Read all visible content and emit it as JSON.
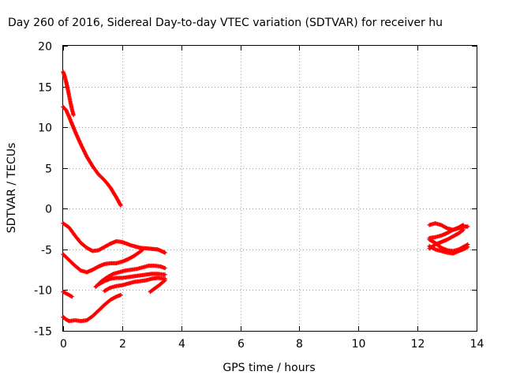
{
  "chart_data": {
    "type": "scatter",
    "title": "Day 260 of 2016, Sidereal Day-to-day VTEC variation (SDTVAR) for receiver hu",
    "xlabel": "GPS time / hours",
    "ylabel": "SDTVAR / TECUs",
    "xlim": [
      0,
      14
    ],
    "ylim": [
      -15,
      20
    ],
    "xticks": [
      0,
      2,
      4,
      6,
      8,
      10,
      12,
      14
    ],
    "yticks": [
      -15,
      -10,
      -5,
      0,
      5,
      10,
      15,
      20
    ],
    "grid": true,
    "marker": "+",
    "color": "#ff0000",
    "series": [
      {
        "segments": [
          [
            [
              0.0,
              16.8
            ],
            [
              0.05,
              16.3
            ],
            [
              0.1,
              15.6
            ],
            [
              0.15,
              14.8
            ],
            [
              0.2,
              13.9
            ],
            [
              0.25,
              13.0
            ],
            [
              0.3,
              12.2
            ],
            [
              0.35,
              11.5
            ]
          ]
        ]
      },
      {
        "segments": [
          [
            [
              0.0,
              12.5
            ],
            [
              0.1,
              12.1
            ],
            [
              0.2,
              11.3
            ],
            [
              0.3,
              10.4
            ],
            [
              0.45,
              9.1
            ],
            [
              0.6,
              7.9
            ],
            [
              0.8,
              6.4
            ],
            [
              1.0,
              5.2
            ],
            [
              1.2,
              4.2
            ],
            [
              1.4,
              3.5
            ],
            [
              1.6,
              2.6
            ],
            [
              1.8,
              1.4
            ],
            [
              1.95,
              0.4
            ]
          ]
        ]
      },
      {
        "segments": [
          [
            [
              0.0,
              -1.8
            ],
            [
              0.2,
              -2.3
            ],
            [
              0.4,
              -3.3
            ],
            [
              0.6,
              -4.2
            ],
            [
              0.8,
              -4.8
            ],
            [
              1.0,
              -5.2
            ],
            [
              1.2,
              -5.1
            ],
            [
              1.4,
              -4.7
            ],
            [
              1.6,
              -4.3
            ],
            [
              1.8,
              -4.0
            ],
            [
              2.0,
              -4.1
            ],
            [
              2.3,
              -4.5
            ],
            [
              2.6,
              -4.8
            ],
            [
              2.9,
              -4.9
            ],
            [
              3.2,
              -5.0
            ],
            [
              3.45,
              -5.4
            ]
          ]
        ]
      },
      {
        "segments": [
          [
            [
              0.0,
              -5.6
            ],
            [
              0.2,
              -6.3
            ],
            [
              0.4,
              -7.0
            ],
            [
              0.6,
              -7.6
            ],
            [
              0.8,
              -7.8
            ],
            [
              1.0,
              -7.5
            ],
            [
              1.2,
              -7.1
            ],
            [
              1.4,
              -6.8
            ],
            [
              1.6,
              -6.7
            ],
            [
              1.8,
              -6.7
            ],
            [
              2.0,
              -6.5
            ],
            [
              2.2,
              -6.2
            ],
            [
              2.4,
              -5.8
            ],
            [
              2.6,
              -5.3
            ],
            [
              2.7,
              -5.0
            ]
          ]
        ]
      },
      {
        "segments": [
          [
            [
              1.1,
              -9.6
            ],
            [
              1.3,
              -8.9
            ],
            [
              1.5,
              -8.4
            ],
            [
              1.7,
              -8.0
            ],
            [
              1.9,
              -7.8
            ],
            [
              2.1,
              -7.6
            ],
            [
              2.3,
              -7.5
            ],
            [
              2.5,
              -7.4
            ],
            [
              2.7,
              -7.2
            ],
            [
              2.9,
              -7.0
            ],
            [
              3.1,
              -7.0
            ],
            [
              3.3,
              -7.1
            ],
            [
              3.45,
              -7.3
            ]
          ]
        ]
      },
      {
        "segments": [
          [
            [
              1.2,
              -9.3
            ],
            [
              1.4,
              -8.9
            ],
            [
              1.6,
              -8.6
            ],
            [
              1.8,
              -8.5
            ],
            [
              2.0,
              -8.5
            ],
            [
              2.2,
              -8.4
            ],
            [
              2.4,
              -8.3
            ],
            [
              2.6,
              -8.2
            ],
            [
              2.8,
              -8.1
            ],
            [
              3.0,
              -8.0
            ],
            [
              3.2,
              -8.0
            ],
            [
              3.45,
              -8.1
            ]
          ],
          [
            [
              1.4,
              -10.1
            ],
            [
              1.6,
              -9.7
            ],
            [
              1.8,
              -9.5
            ],
            [
              2.0,
              -9.4
            ],
            [
              2.2,
              -9.2
            ],
            [
              2.4,
              -9.0
            ],
            [
              2.6,
              -8.9
            ],
            [
              2.8,
              -8.8
            ],
            [
              3.0,
              -8.6
            ],
            [
              3.2,
              -8.5
            ],
            [
              3.45,
              -8.6
            ]
          ]
        ]
      },
      {
        "segments": [
          [
            [
              2.95,
              -10.2
            ],
            [
              3.1,
              -9.8
            ],
            [
              3.25,
              -9.4
            ],
            [
              3.45,
              -8.8
            ]
          ]
        ]
      },
      {
        "segments": [
          [
            [
              0.0,
              -10.2
            ],
            [
              0.1,
              -10.4
            ],
            [
              0.2,
              -10.6
            ],
            [
              0.3,
              -10.8
            ]
          ]
        ]
      },
      {
        "segments": [
          [
            [
              0.0,
              -13.3
            ],
            [
              0.1,
              -13.6
            ],
            [
              0.2,
              -13.8
            ],
            [
              0.4,
              -13.7
            ],
            [
              0.6,
              -13.8
            ],
            [
              0.8,
              -13.7
            ],
            [
              1.0,
              -13.2
            ],
            [
              1.2,
              -12.5
            ],
            [
              1.4,
              -11.8
            ],
            [
              1.6,
              -11.2
            ],
            [
              1.8,
              -10.8
            ],
            [
              1.95,
              -10.6
            ]
          ]
        ]
      },
      {
        "segments": [
          [
            [
              12.4,
              -2.0
            ],
            [
              12.6,
              -1.8
            ],
            [
              12.8,
              -2.0
            ],
            [
              13.0,
              -2.4
            ],
            [
              13.2,
              -2.6
            ],
            [
              13.4,
              -2.4
            ],
            [
              13.6,
              -2.2
            ],
            [
              13.7,
              -2.2
            ]
          ],
          [
            [
              12.4,
              -3.6
            ],
            [
              12.6,
              -3.5
            ],
            [
              12.8,
              -3.3
            ],
            [
              13.0,
              -3.0
            ],
            [
              13.2,
              -2.6
            ],
            [
              13.4,
              -2.3
            ],
            [
              13.55,
              -2.0
            ]
          ],
          [
            [
              12.4,
              -4.9
            ],
            [
              12.6,
              -4.4
            ],
            [
              12.8,
              -4.1
            ],
            [
              13.0,
              -3.8
            ],
            [
              13.2,
              -3.4
            ],
            [
              13.4,
              -3.0
            ],
            [
              13.55,
              -2.6
            ]
          ],
          [
            [
              12.4,
              -4.6
            ],
            [
              12.6,
              -5.0
            ],
            [
              12.8,
              -5.2
            ],
            [
              13.0,
              -5.4
            ],
            [
              13.2,
              -5.5
            ],
            [
              13.4,
              -5.2
            ],
            [
              13.6,
              -4.9
            ],
            [
              13.7,
              -4.7
            ]
          ],
          [
            [
              12.4,
              -3.8
            ],
            [
              12.6,
              -4.2
            ],
            [
              12.8,
              -4.8
            ],
            [
              13.0,
              -5.1
            ],
            [
              13.2,
              -5.2
            ],
            [
              13.4,
              -5.0
            ],
            [
              13.6,
              -4.6
            ],
            [
              13.7,
              -4.4
            ]
          ]
        ]
      }
    ]
  }
}
